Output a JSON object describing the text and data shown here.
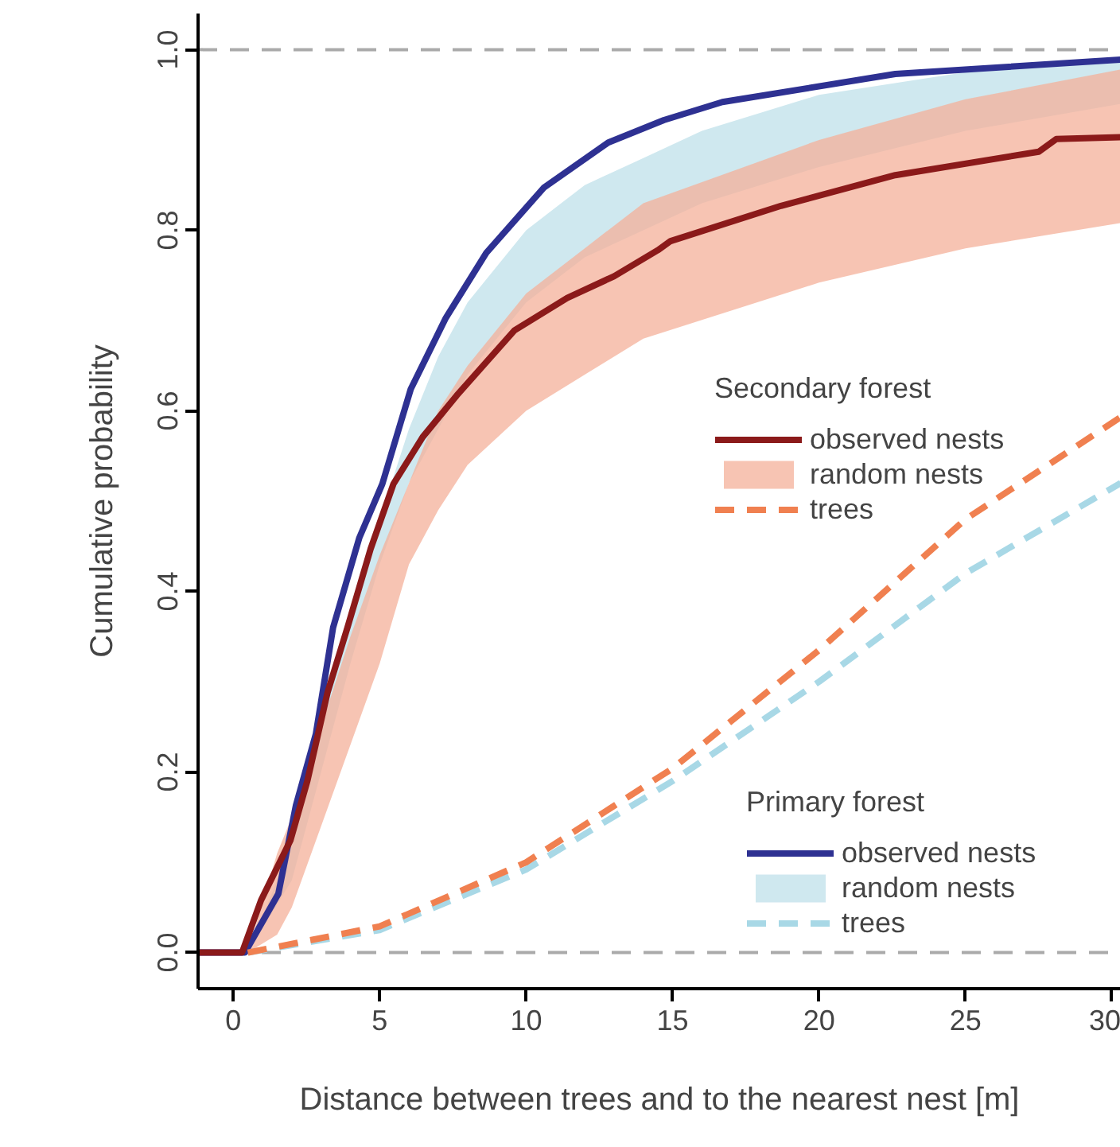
{
  "chart_data": {
    "type": "line",
    "xlabel": "Distance between trees and to the nearest nest [m]",
    "ylabel": "Cumulative probability",
    "annotations": [
      "Secondary forest",
      "Primary forest"
    ],
    "xlim": [
      -1.2,
      30.3
    ],
    "ylim": [
      -0.04,
      1.04
    ],
    "xticks": [
      0,
      5,
      10,
      15,
      20,
      25,
      30
    ],
    "yticks": [
      {
        "value": 0,
        "label": "0.0"
      },
      {
        "value": 0.2,
        "label": "0.2"
      },
      {
        "value": 0.4,
        "label": "0.4"
      },
      {
        "value": 0.6,
        "label": "0.6"
      },
      {
        "value": 0.8,
        "label": "0.8"
      },
      {
        "value": 1,
        "label": "1.0"
      }
    ],
    "ref_lines": [
      {
        "axis": "y",
        "value": 0,
        "color": "#aaaaaa",
        "line_style": "dashed"
      },
      {
        "axis": "y",
        "value": 1,
        "color": "#aaaaaa",
        "line_style": "dashed"
      }
    ],
    "legend": "right",
    "grid": false,
    "series": [
      {
        "name": "observed nests",
        "color": "#8b1a1a",
        "x": [
          -1.2,
          0.3,
          0.95,
          1.95,
          2.53,
          3.22,
          3.9,
          4.69,
          5.47,
          6.47,
          7.63,
          9.6,
          11.4,
          13.0,
          14.5,
          14.93,
          18.7,
          22.6,
          27.5,
          28.1,
          30.3
        ],
        "values": [
          0,
          0,
          0.058,
          0.124,
          0.19,
          0.288,
          0.36,
          0.447,
          0.519,
          0.571,
          0.617,
          0.689,
          0.725,
          0.749,
          0.778,
          0.788,
          0.827,
          0.861,
          0.887,
          0.901,
          0.903
        ]
      },
      {
        "name": "random nests",
        "type": "area",
        "color": "#f4b09a",
        "x": [
          0.5,
          1.5,
          2,
          3,
          4,
          5,
          6,
          7,
          8,
          10,
          12,
          14,
          20,
          25,
          30.3
        ],
        "lower": [
          0,
          0.02,
          0.05,
          0.14,
          0.23,
          0.32,
          0.43,
          0.49,
          0.54,
          0.6,
          0.64,
          0.68,
          0.742,
          0.78,
          0.808
        ],
        "values": [
          null,
          null,
          null,
          null,
          null,
          null,
          null,
          null,
          null,
          null,
          null,
          null,
          null,
          null,
          null
        ],
        "upper": [
          0,
          0.11,
          0.15,
          0.25,
          0.35,
          0.44,
          0.52,
          0.6,
          0.65,
          0.73,
          0.78,
          0.83,
          0.9,
          0.945,
          0.978
        ]
      },
      {
        "name": "trees",
        "type": "line",
        "line_style": "dashed",
        "color": "#f08050",
        "x": [
          0.5,
          5,
          10,
          15,
          20,
          25,
          30.3
        ],
        "values": [
          0,
          0.029,
          0.1,
          0.204,
          0.335,
          0.48,
          0.593
        ]
      },
      {
        "name": "observed nests",
        "color": "#2e3192",
        "x": [
          -1.2,
          0.4,
          1.54,
          2.14,
          2.82,
          3.41,
          4.3,
          5.09,
          6.06,
          7.26,
          8.64,
          10.6,
          12.8,
          14.7,
          16.7,
          22.6,
          30.3
        ],
        "values": [
          0,
          0,
          0.065,
          0.163,
          0.242,
          0.36,
          0.459,
          0.519,
          0.624,
          0.703,
          0.775,
          0.847,
          0.897,
          0.922,
          0.942,
          0.973,
          0.989
        ]
      },
      {
        "name": "random nests",
        "type": "area",
        "color": "#cfe8ef",
        "x": [
          0.5,
          2,
          3,
          4,
          5,
          6,
          7,
          8,
          10,
          12,
          14,
          16,
          20,
          25,
          30.3
        ],
        "lower": [
          0,
          0.08,
          0.2,
          0.32,
          0.43,
          0.52,
          0.58,
          0.64,
          0.72,
          0.77,
          0.8,
          0.83,
          0.87,
          0.91,
          0.94
        ],
        "values": [
          null,
          null,
          null,
          null,
          null,
          null,
          null,
          null,
          null,
          null,
          null,
          null,
          null,
          null,
          null
        ],
        "upper": [
          0,
          0.12,
          0.26,
          0.38,
          0.48,
          0.58,
          0.66,
          0.72,
          0.8,
          0.85,
          0.88,
          0.91,
          0.95,
          0.975,
          0.99
        ]
      },
      {
        "name": "trees",
        "type": "line",
        "line_style": "dashed",
        "color": "#a8d8e6",
        "x": [
          0.5,
          5,
          10,
          15,
          20,
          25,
          30.3
        ],
        "values": [
          0,
          0.025,
          0.092,
          0.19,
          0.3,
          0.42,
          0.52
        ]
      }
    ]
  }
}
